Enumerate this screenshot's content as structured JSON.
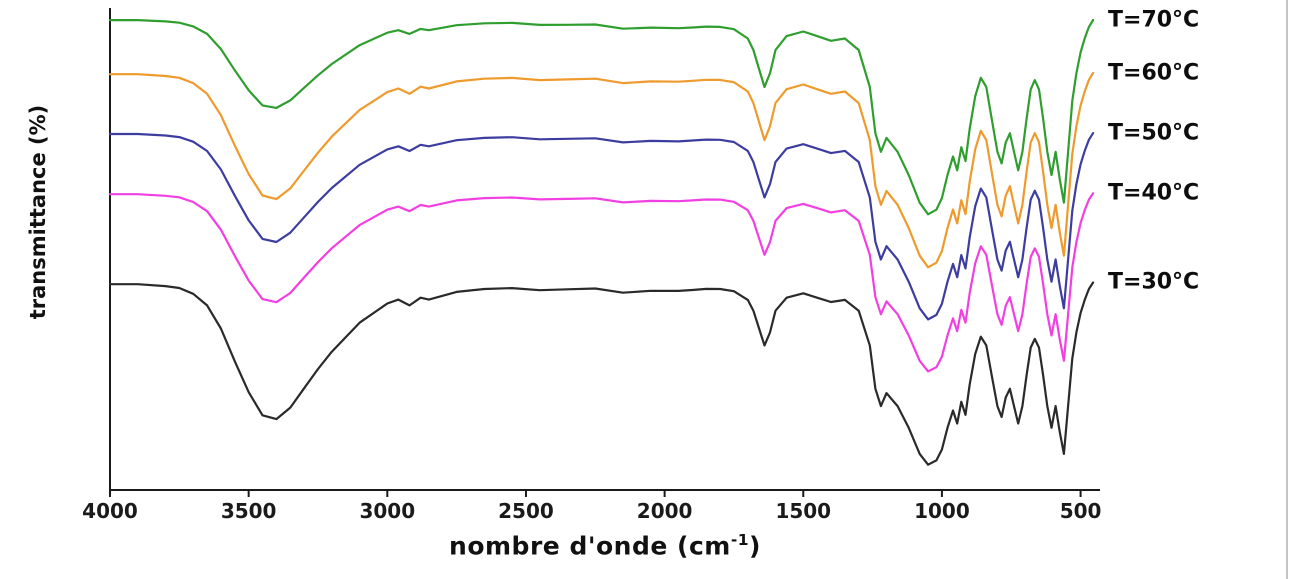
{
  "window": {
    "background": "#ffffff"
  },
  "chart_data": {
    "type": "line",
    "title": "",
    "subtitle": "",
    "xlabel": "nombre d'onde (cm⁻¹)",
    "xlabel_main": "nombre d'onde (cm",
    "xlabel_sup": "-1",
    "xlabel_close": ")",
    "ylabel": "transmittance (%)",
    "axis_color": "#1a1a1a",
    "label_color": "#111111",
    "grid": false,
    "legend_position": "right-of-curve-ends",
    "x_axis": {
      "ticks": [
        4000,
        3500,
        3000,
        2500,
        2000,
        1500,
        1000,
        500
      ],
      "range": [
        4000,
        430
      ],
      "reversed": true,
      "units": "cm-1"
    },
    "y_axis": {
      "tick_labels_visible": false,
      "range": [
        0,
        100
      ],
      "note": "stacked transmittance curves with vertical offsets, arbitrary units"
    },
    "x": [
      4000,
      3900,
      3800,
      3750,
      3700,
      3650,
      3600,
      3550,
      3500,
      3450,
      3400,
      3350,
      3300,
      3250,
      3200,
      3100,
      3000,
      2960,
      2920,
      2880,
      2850,
      2750,
      2650,
      2550,
      2450,
      2350,
      2250,
      2150,
      2050,
      1950,
      1900,
      1850,
      1800,
      1750,
      1700,
      1680,
      1660,
      1640,
      1620,
      1600,
      1560,
      1500,
      1450,
      1400,
      1350,
      1300,
      1260,
      1240,
      1220,
      1200,
      1160,
      1120,
      1080,
      1050,
      1020,
      1000,
      980,
      960,
      945,
      930,
      915,
      900,
      880,
      860,
      840,
      820,
      800,
      785,
      770,
      755,
      740,
      725,
      710,
      695,
      680,
      665,
      650,
      635,
      620,
      605,
      590,
      575,
      560,
      545,
      530,
      515,
      500,
      485,
      470,
      455
    ],
    "base_absorbance": [
      0.02,
      0.02,
      0.03,
      0.04,
      0.07,
      0.13,
      0.25,
      0.42,
      0.58,
      0.7,
      0.72,
      0.66,
      0.56,
      0.46,
      0.37,
      0.22,
      0.12,
      0.1,
      0.13,
      0.09,
      0.1,
      0.06,
      0.045,
      0.04,
      0.05,
      0.045,
      0.04,
      0.06,
      0.05,
      0.05,
      0.045,
      0.04,
      0.04,
      0.05,
      0.09,
      0.14,
      0.22,
      0.3,
      0.24,
      0.14,
      0.08,
      0.06,
      0.08,
      0.1,
      0.09,
      0.14,
      0.3,
      0.5,
      0.58,
      0.52,
      0.58,
      0.68,
      0.8,
      0.85,
      0.83,
      0.78,
      0.68,
      0.6,
      0.66,
      0.56,
      0.62,
      0.48,
      0.34,
      0.26,
      0.3,
      0.44,
      0.58,
      0.63,
      0.54,
      0.5,
      0.58,
      0.66,
      0.58,
      0.44,
      0.31,
      0.27,
      0.31,
      0.44,
      0.58,
      0.68,
      0.58,
      0.7,
      0.8,
      0.58,
      0.36,
      0.24,
      0.15,
      0.09,
      0.04,
      0.01
    ],
    "main_band_positions_cm1": {
      "OH_stretch_broad": 3450,
      "CH_stretch_weak": 2920,
      "HOH_bending": 1640,
      "CO_SiO_strong_broad": 1050,
      "fingerprint_sharp_dips": [
        1220,
        945,
        785,
        725,
        605,
        560
      ]
    },
    "series": [
      {
        "name": "T=70°C",
        "color": "#2f9e2f",
        "baseline": 98,
        "depth_oh": 26,
        "depth_fingerprint": 48
      },
      {
        "name": "T=60°C",
        "color": "#ef9a2d",
        "baseline": 87,
        "depth_oh": 37,
        "depth_fingerprint": 48
      },
      {
        "name": "T=50°C",
        "color": "#3d3da0",
        "baseline": 74.5,
        "depth_oh": 32,
        "depth_fingerprint": 46
      },
      {
        "name": "T=40°C",
        "color": "#f23fe2",
        "baseline": 62,
        "depth_oh": 32,
        "depth_fingerprint": 44
      },
      {
        "name": "T=30°C",
        "color": "#2a2a2a",
        "baseline": 43.5,
        "depth_oh": 40,
        "depth_fingerprint": 45
      }
    ]
  }
}
